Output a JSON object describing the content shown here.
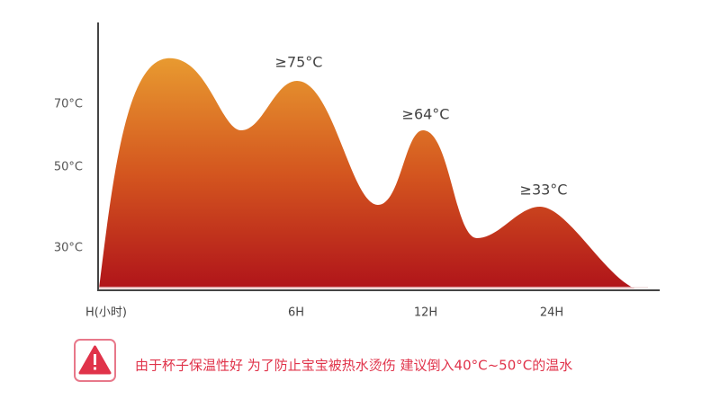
{
  "axis": {
    "y_labels": [
      "70°C",
      "50°C",
      "30°C"
    ],
    "x_labels": [
      "H(小时)",
      "6H",
      "12H",
      "24H"
    ]
  },
  "annotations": [
    "≥75°C",
    "≥64°C",
    "≥33°C"
  ],
  "notice": {
    "text": "由于杯子保温性好 为了防止宝宝被热水烫伤 建议倒入40°C~50°C的温水"
  }
}
